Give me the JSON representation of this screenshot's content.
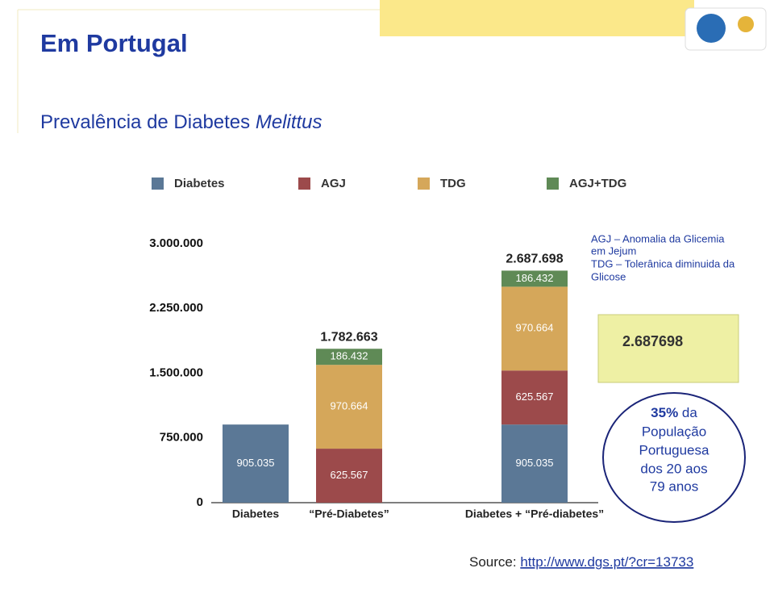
{
  "header": {
    "title": "Em Portugal",
    "subtitle": "Prevalência de Diabetes ",
    "subtitle_italic": "Melittus"
  },
  "chart_data": {
    "type": "stacked_bar",
    "categories": [
      "Diabetes",
      "“Pré-Diabetes”",
      "Diabetes + “Pré-diabetes”"
    ],
    "series": [
      {
        "name": "Diabetes",
        "color": "#5b7896",
        "values": [
          905035,
          null,
          905035
        ],
        "value_labels": [
          "905.035",
          null,
          "905.035"
        ]
      },
      {
        "name": "AGJ",
        "color": "#9c4a4b",
        "values": [
          null,
          625567,
          625567
        ],
        "value_labels": [
          null,
          "625.567",
          "625.567"
        ]
      },
      {
        "name": "TDG",
        "color": "#d5a75a",
        "values": [
          null,
          970664,
          970664
        ],
        "value_labels": [
          null,
          "970.664",
          "970.664"
        ]
      },
      {
        "name": "AGJ+TDG",
        "color": "#5f8a56",
        "values": [
          null,
          186432,
          186432
        ],
        "value_labels": [
          null,
          "186.432",
          "186.432"
        ]
      }
    ],
    "totals": {
      "values": [
        null,
        1782663,
        2687698
      ],
      "value_labels": [
        null,
        "1.782.663",
        "2.687.698"
      ]
    },
    "ylim": [
      0,
      3000000
    ],
    "yticks": [
      0,
      {
        "value": 750000,
        "label": "750.000"
      },
      {
        "value": 1500000,
        "label": "1.500.000"
      },
      {
        "value": 2250000,
        "label": "2.250.000"
      },
      {
        "value": 3000000,
        "label": "3.000.000"
      }
    ],
    "legend": "top"
  },
  "notes": [
    "AGJ – Anomalia da Glicemia",
    "em Jejum",
    "TDG – Tolerânica diminuida da",
    "Glicose"
  ],
  "sticky_note": "2.687698",
  "callout": {
    "bold": "35%",
    "lines": [
      " da",
      "População",
      "Portuguesa",
      "dos 20 aos",
      "79 anos"
    ]
  },
  "source": {
    "label": "Source: ",
    "link": "http://www.dgs.pt/?cr=13733"
  }
}
